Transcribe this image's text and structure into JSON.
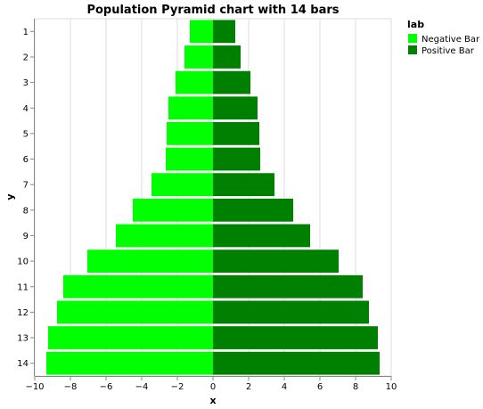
{
  "chart_data": {
    "type": "bar",
    "orientation": "horizontal",
    "title": "Population Pyramid chart with 14 bars",
    "xlabel": "x",
    "ylabel": "y",
    "xlim": [
      -10,
      10
    ],
    "x_ticks": [
      -10,
      -8,
      -6,
      -4,
      -2,
      0,
      2,
      4,
      6,
      8,
      10
    ],
    "x_tick_labels": [
      "−10",
      "−8",
      "−6",
      "−4",
      "−2",
      "0",
      "2",
      "4",
      "6",
      "8",
      "10"
    ],
    "categories": [
      "1",
      "2",
      "3",
      "4",
      "5",
      "6",
      "7",
      "8",
      "9",
      "10",
      "11",
      "12",
      "13",
      "14"
    ],
    "series": [
      {
        "name": "Negative Bar",
        "color": "#00ff00",
        "values": [
          -1.3,
          -1.6,
          -2.1,
          -2.5,
          -2.6,
          -2.65,
          -3.45,
          -4.5,
          -5.45,
          -7.05,
          -8.4,
          -8.75,
          -9.25,
          -9.35
        ]
      },
      {
        "name": "Positive Bar",
        "color": "#008000",
        "values": [
          1.25,
          1.55,
          2.1,
          2.5,
          2.6,
          2.65,
          3.45,
          4.5,
          5.45,
          7.05,
          8.4,
          8.75,
          9.25,
          9.35
        ]
      }
    ],
    "grid": true,
    "legend": {
      "title": "lab",
      "position": "right"
    }
  }
}
